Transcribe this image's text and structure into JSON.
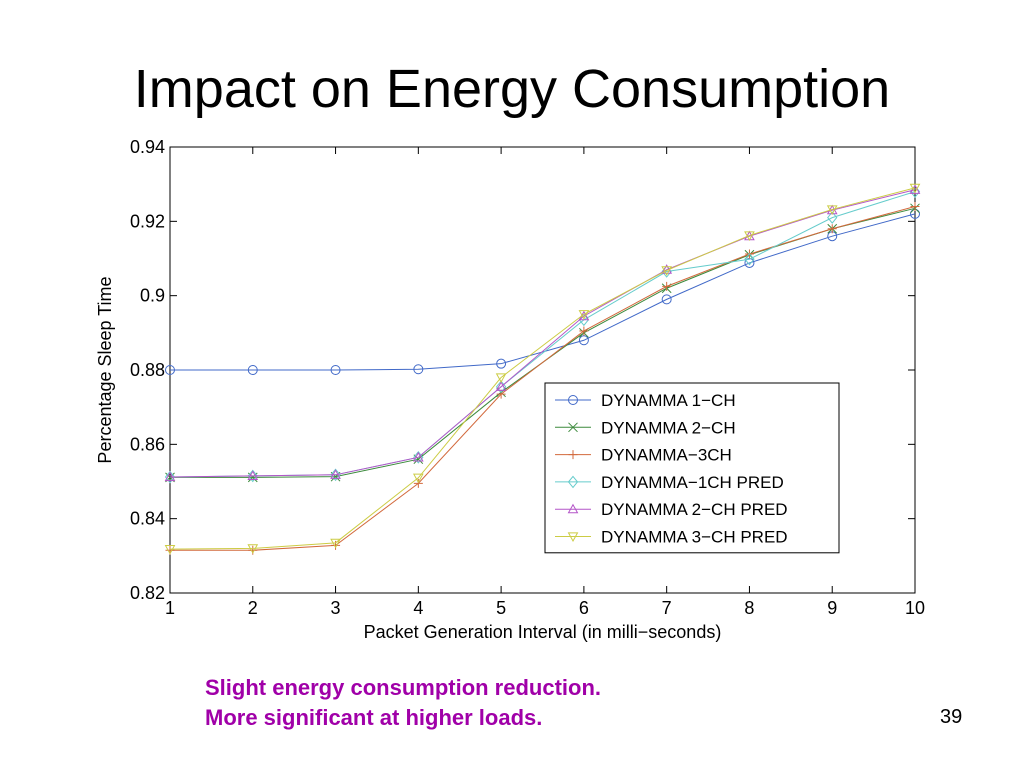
{
  "slide": {
    "title": "Impact on Energy Consumption",
    "caption_lines": [
      "Slight energy consumption reduction.",
      "More significant at higher loads."
    ],
    "page_number": "39"
  },
  "chart_data": {
    "type": "line",
    "title": "",
    "xlabel": "Packet Generation Interval (in milli−seconds)",
    "ylabel": "Percentage Sleep Time",
    "x": [
      1,
      2,
      3,
      4,
      5,
      6,
      7,
      8,
      9,
      10
    ],
    "xlim": [
      1,
      10
    ],
    "ylim": [
      0.82,
      0.94
    ],
    "xticks": [
      "1",
      "2",
      "3",
      "4",
      "5",
      "6",
      "7",
      "8",
      "9",
      "10"
    ],
    "yticks": [
      "0.82",
      "0.84",
      "0.86",
      "0.88",
      "0.9",
      "0.92",
      "0.94"
    ],
    "grid": false,
    "legend_position": "bottom-right",
    "series": [
      {
        "name": "DYNAMMA 1−CH",
        "color": "#4169c8",
        "marker": "circle",
        "values": [
          0.88,
          0.88,
          0.88,
          0.8802,
          0.8817,
          0.888,
          0.899,
          0.9088,
          0.916,
          0.922
        ]
      },
      {
        "name": "DYNAMMA 2−CH",
        "color": "#3c8a3c",
        "marker": "x",
        "values": [
          0.8511,
          0.8511,
          0.8513,
          0.856,
          0.874,
          0.89,
          0.902,
          0.911,
          0.918,
          0.9235
        ]
      },
      {
        "name": "DYNAMMA−3CH",
        "color": "#d2693c",
        "marker": "plus",
        "values": [
          0.8315,
          0.8315,
          0.8328,
          0.8495,
          0.8735,
          0.8905,
          0.9025,
          0.9112,
          0.918,
          0.924
        ]
      },
      {
        "name": "DYNAMMA−1CH PRED",
        "color": "#66cccc",
        "marker": "diamond",
        "values": [
          0.8512,
          0.8515,
          0.8518,
          0.8565,
          0.8755,
          0.8935,
          0.9065,
          0.9098,
          0.921,
          0.928
        ]
      },
      {
        "name": "DYNAMMA 2−CH PRED",
        "color": "#b455c8",
        "marker": "triangle-up",
        "values": [
          0.8512,
          0.8515,
          0.8518,
          0.8565,
          0.8755,
          0.8945,
          0.907,
          0.916,
          0.923,
          0.9285
        ]
      },
      {
        "name": "DYNAMMA 3−CH PRED",
        "color": "#cccc44",
        "marker": "triangle-down",
        "values": [
          0.8318,
          0.832,
          0.8335,
          0.851,
          0.878,
          0.895,
          0.9068,
          0.9162,
          0.9232,
          0.929
        ]
      }
    ]
  }
}
